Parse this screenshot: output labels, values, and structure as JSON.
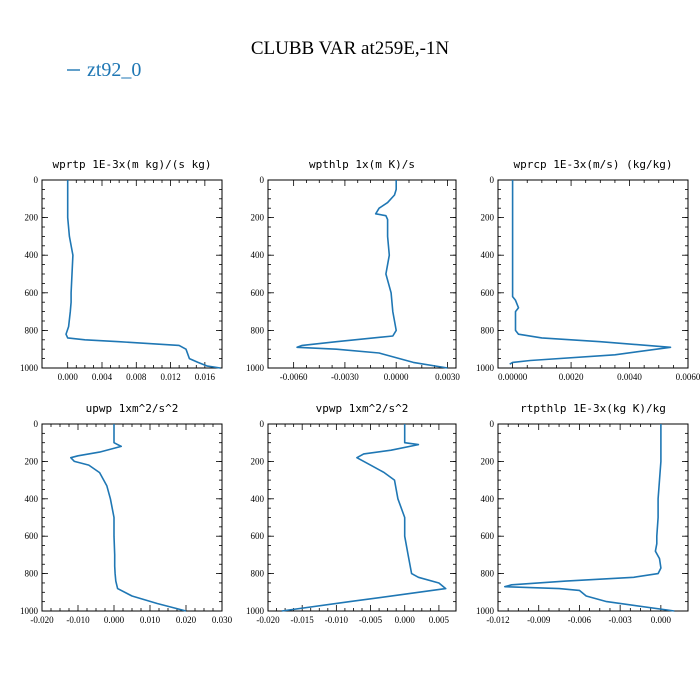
{
  "title": "CLUBB VAR at259E,-1N",
  "legend": {
    "label": "zt92_0",
    "color": "#1f77b4"
  },
  "chart_data": [
    {
      "type": "line",
      "title": "wprtp  1E-3x(m kg)/(s kg)",
      "xlim": [
        -0.003,
        0.018
      ],
      "xticks": [
        0.0,
        0.004,
        0.008,
        0.012,
        0.016
      ],
      "xtick_labels": [
        "0.000",
        "0.004",
        "0.008",
        "0.012",
        "0.016"
      ],
      "ylim": [
        1000,
        0
      ],
      "yticks": [
        0,
        200,
        400,
        600,
        800,
        1000
      ],
      "series": [
        {
          "x": [
            0.0,
            0.0,
            0.0002,
            0.0006,
            0.0005,
            0.0004,
            0.0004,
            0.0003,
            0.0001,
            -0.0002,
            0.0,
            0.002,
            0.006,
            0.013,
            0.0138,
            0.0142,
            0.0152,
            0.0163,
            0.0178
          ],
          "y": [
            0,
            200,
            300,
            400,
            500,
            600,
            650,
            700,
            780,
            820,
            840,
            850,
            860,
            880,
            900,
            950,
            970,
            990,
            1000
          ]
        }
      ]
    },
    {
      "type": "line",
      "title": "wpthlp  1x(m K)/s",
      "xlim": [
        -0.0075,
        0.0035
      ],
      "xticks": [
        -0.006,
        -0.003,
        0.0,
        0.003
      ],
      "xtick_labels": [
        "-0.0060",
        "-0.0030",
        "0.0000",
        "0.0030"
      ],
      "ylim": [
        1000,
        0
      ],
      "yticks": [
        0,
        200,
        400,
        600,
        800,
        1000
      ],
      "series": [
        {
          "x": [
            0.0,
            0.0,
            -0.0001,
            -0.0005,
            -0.001,
            -0.0012,
            -0.0006,
            -0.0005,
            -0.0005,
            -0.0004,
            -0.0006,
            -0.0003,
            -0.0002,
            0.0,
            -0.0002,
            -0.0035,
            -0.0055,
            -0.0058,
            -0.0035,
            -0.001,
            0.001,
            0.003
          ],
          "y": [
            0,
            50,
            80,
            120,
            150,
            180,
            190,
            210,
            300,
            400,
            500,
            600,
            700,
            800,
            830,
            860,
            880,
            890,
            900,
            920,
            970,
            1000
          ]
        }
      ]
    },
    {
      "type": "line",
      "title": "wprcp  1E-3x(m/s) (kg/kg)",
      "xlim": [
        -0.0005,
        0.006
      ],
      "xticks": [
        0.0,
        0.002,
        0.004,
        0.006
      ],
      "xtick_labels": [
        "0.00000",
        "0.0020",
        "0.0040",
        "0.0060"
      ],
      "ylim": [
        1000,
        0
      ],
      "yticks": [
        0,
        200,
        400,
        600,
        800,
        1000
      ],
      "series": [
        {
          "x": [
            0.0,
            0.0,
            0.0,
            0.0,
            0.0,
            0.0,
            0.0001,
            0.0002,
            0.0001,
            0.0001,
            0.0002,
            0.001,
            0.003,
            0.0054,
            0.0035,
            0.0006,
            0.0,
            -0.0001
          ],
          "y": [
            0,
            200,
            400,
            500,
            600,
            620,
            640,
            680,
            700,
            800,
            820,
            840,
            860,
            890,
            930,
            960,
            970,
            980
          ]
        }
      ]
    },
    {
      "type": "line",
      "title": "upwp  1xm^2/s^2",
      "xlim": [
        -0.02,
        0.03
      ],
      "xticks": [
        -0.02,
        -0.01,
        0.0,
        0.01,
        0.02,
        0.03
      ],
      "xtick_labels": [
        "-0.020",
        "-0.010",
        "0.000",
        "0.010",
        "0.020",
        "0.030"
      ],
      "ylim": [
        1000,
        0
      ],
      "yticks": [
        0,
        200,
        400,
        600,
        800,
        1000
      ],
      "series": [
        {
          "x": [
            0.0,
            0.0,
            0.001,
            0.002,
            -0.004,
            -0.01,
            -0.012,
            -0.011,
            -0.007,
            -0.004,
            -0.002,
            -0.001,
            0.0,
            0.0,
            0.0002,
            0.0002,
            0.0003,
            0.0005,
            0.001,
            0.005,
            0.012,
            0.02
          ],
          "y": [
            0,
            100,
            110,
            120,
            150,
            170,
            180,
            200,
            220,
            260,
            330,
            400,
            500,
            600,
            700,
            760,
            800,
            840,
            880,
            920,
            960,
            1000
          ]
        }
      ]
    },
    {
      "type": "line",
      "title": "vpwp  1xm^2/s^2",
      "xlim": [
        -0.02,
        0.0075
      ],
      "xticks": [
        -0.02,
        -0.015,
        -0.01,
        -0.005,
        0.0,
        0.005
      ],
      "xtick_labels": [
        "-0.020",
        "-0.015",
        "-0.010",
        "-0.005",
        "0.000",
        "0.005"
      ],
      "ylim": [
        1000,
        0
      ],
      "yticks": [
        0,
        200,
        400,
        600,
        800,
        1000
      ],
      "series": [
        {
          "x": [
            0.0,
            0.0,
            0.002,
            -0.002,
            -0.006,
            -0.007,
            -0.005,
            -0.003,
            -0.0015,
            -0.001,
            0.0,
            0.0,
            0.0005,
            0.001,
            0.002,
            0.005,
            0.006,
            0.0,
            -0.008,
            -0.018
          ],
          "y": [
            0,
            100,
            110,
            140,
            160,
            180,
            220,
            260,
            300,
            400,
            500,
            600,
            700,
            800,
            820,
            850,
            880,
            910,
            950,
            1000
          ]
        }
      ]
    },
    {
      "type": "line",
      "title": "rtpthlp  1E-3x(kg K)/kg",
      "xlim": [
        -0.012,
        0.002
      ],
      "xticks": [
        -0.012,
        -0.009,
        -0.006,
        -0.003,
        0.0
      ],
      "xtick_labels": [
        "-0.012",
        "-0.009",
        "-0.006",
        "-0.003",
        "0.000"
      ],
      "ylim": [
        1000,
        0
      ],
      "yticks": [
        0,
        200,
        400,
        600,
        800,
        1000
      ],
      "series": [
        {
          "x": [
            0.0,
            0.0,
            -0.0001,
            -0.0002,
            -0.0002,
            -0.0003,
            -0.0003,
            -0.0004,
            -0.0001,
            0.0,
            -0.0002,
            -0.002,
            -0.007,
            -0.011,
            -0.0115,
            -0.0075,
            -0.006,
            -0.0055,
            -0.004,
            0.001
          ],
          "y": [
            0,
            200,
            300,
            400,
            500,
            600,
            640,
            680,
            720,
            770,
            800,
            820,
            840,
            860,
            870,
            880,
            890,
            920,
            950,
            1000
          ]
        }
      ]
    }
  ]
}
